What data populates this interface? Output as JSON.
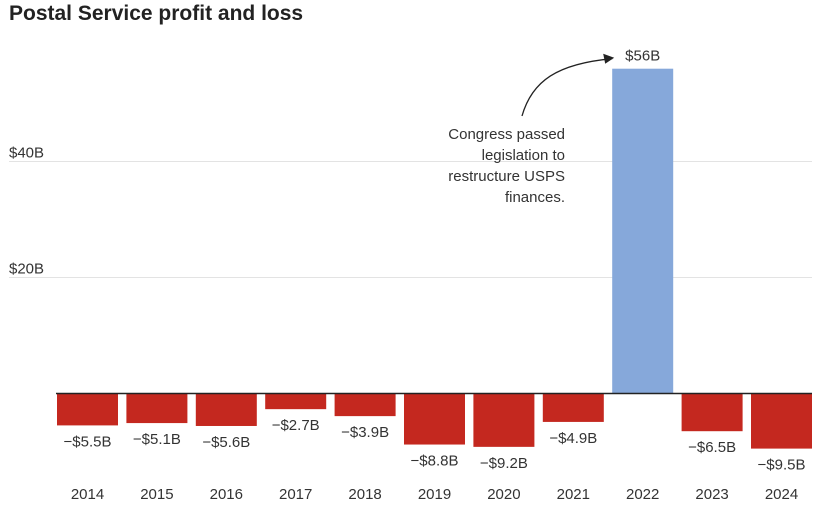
{
  "chart_data": {
    "type": "bar",
    "title": "Postal Service profit and loss",
    "categories": [
      "2014",
      "2015",
      "2016",
      "2017",
      "2018",
      "2019",
      "2020",
      "2021",
      "2022",
      "2023",
      "2024"
    ],
    "values": [
      -5.5,
      -5.1,
      -5.6,
      -2.7,
      -3.9,
      -8.8,
      -9.2,
      -4.9,
      56,
      -6.5,
      -9.5
    ],
    "value_labels": [
      "−$5.5B",
      "−$5.1B",
      "−$5.6B",
      "−$2.7B",
      "−$3.9B",
      "−$8.8B",
      "−$9.2B",
      "−$4.9B",
      "$56B",
      "−$6.5B",
      "−$9.5B"
    ],
    "yticks": [
      20,
      40
    ],
    "ytick_labels": [
      "$20B",
      "$40B"
    ],
    "ylim": [
      -11,
      60
    ],
    "grid": true,
    "colors": {
      "negative": "#c4281f",
      "positive": "#86a8da",
      "gridline": "#e3e3e3",
      "baseline": "#222222"
    },
    "annotation": {
      "lines": [
        "Congress passed",
        "legislation to",
        "restructure USPS",
        "finances."
      ],
      "target_category": "2022"
    }
  }
}
